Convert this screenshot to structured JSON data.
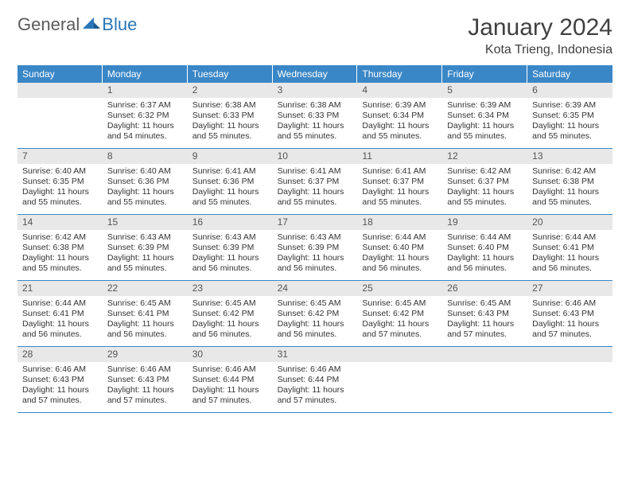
{
  "logo": {
    "text1": "General",
    "text2": "Blue"
  },
  "title": "January 2024",
  "location": "Kota Trieng, Indonesia",
  "header_bg": "#3a87c7",
  "daynum_bg": "#e8e8e8",
  "border_color": "#3a87c7",
  "day_names": [
    "Sunday",
    "Monday",
    "Tuesday",
    "Wednesday",
    "Thursday",
    "Friday",
    "Saturday"
  ],
  "weeks": [
    [
      {
        "n": "",
        "sr": "",
        "ss": "",
        "dl": ""
      },
      {
        "n": "1",
        "sr": "Sunrise: 6:37 AM",
        "ss": "Sunset: 6:32 PM",
        "dl": "Daylight: 11 hours and 54 minutes."
      },
      {
        "n": "2",
        "sr": "Sunrise: 6:38 AM",
        "ss": "Sunset: 6:33 PM",
        "dl": "Daylight: 11 hours and 55 minutes."
      },
      {
        "n": "3",
        "sr": "Sunrise: 6:38 AM",
        "ss": "Sunset: 6:33 PM",
        "dl": "Daylight: 11 hours and 55 minutes."
      },
      {
        "n": "4",
        "sr": "Sunrise: 6:39 AM",
        "ss": "Sunset: 6:34 PM",
        "dl": "Daylight: 11 hours and 55 minutes."
      },
      {
        "n": "5",
        "sr": "Sunrise: 6:39 AM",
        "ss": "Sunset: 6:34 PM",
        "dl": "Daylight: 11 hours and 55 minutes."
      },
      {
        "n": "6",
        "sr": "Sunrise: 6:39 AM",
        "ss": "Sunset: 6:35 PM",
        "dl": "Daylight: 11 hours and 55 minutes."
      }
    ],
    [
      {
        "n": "7",
        "sr": "Sunrise: 6:40 AM",
        "ss": "Sunset: 6:35 PM",
        "dl": "Daylight: 11 hours and 55 minutes."
      },
      {
        "n": "8",
        "sr": "Sunrise: 6:40 AM",
        "ss": "Sunset: 6:36 PM",
        "dl": "Daylight: 11 hours and 55 minutes."
      },
      {
        "n": "9",
        "sr": "Sunrise: 6:41 AM",
        "ss": "Sunset: 6:36 PM",
        "dl": "Daylight: 11 hours and 55 minutes."
      },
      {
        "n": "10",
        "sr": "Sunrise: 6:41 AM",
        "ss": "Sunset: 6:37 PM",
        "dl": "Daylight: 11 hours and 55 minutes."
      },
      {
        "n": "11",
        "sr": "Sunrise: 6:41 AM",
        "ss": "Sunset: 6:37 PM",
        "dl": "Daylight: 11 hours and 55 minutes."
      },
      {
        "n": "12",
        "sr": "Sunrise: 6:42 AM",
        "ss": "Sunset: 6:37 PM",
        "dl": "Daylight: 11 hours and 55 minutes."
      },
      {
        "n": "13",
        "sr": "Sunrise: 6:42 AM",
        "ss": "Sunset: 6:38 PM",
        "dl": "Daylight: 11 hours and 55 minutes."
      }
    ],
    [
      {
        "n": "14",
        "sr": "Sunrise: 6:42 AM",
        "ss": "Sunset: 6:38 PM",
        "dl": "Daylight: 11 hours and 55 minutes."
      },
      {
        "n": "15",
        "sr": "Sunrise: 6:43 AM",
        "ss": "Sunset: 6:39 PM",
        "dl": "Daylight: 11 hours and 55 minutes."
      },
      {
        "n": "16",
        "sr": "Sunrise: 6:43 AM",
        "ss": "Sunset: 6:39 PM",
        "dl": "Daylight: 11 hours and 56 minutes."
      },
      {
        "n": "17",
        "sr": "Sunrise: 6:43 AM",
        "ss": "Sunset: 6:39 PM",
        "dl": "Daylight: 11 hours and 56 minutes."
      },
      {
        "n": "18",
        "sr": "Sunrise: 6:44 AM",
        "ss": "Sunset: 6:40 PM",
        "dl": "Daylight: 11 hours and 56 minutes."
      },
      {
        "n": "19",
        "sr": "Sunrise: 6:44 AM",
        "ss": "Sunset: 6:40 PM",
        "dl": "Daylight: 11 hours and 56 minutes."
      },
      {
        "n": "20",
        "sr": "Sunrise: 6:44 AM",
        "ss": "Sunset: 6:41 PM",
        "dl": "Daylight: 11 hours and 56 minutes."
      }
    ],
    [
      {
        "n": "21",
        "sr": "Sunrise: 6:44 AM",
        "ss": "Sunset: 6:41 PM",
        "dl": "Daylight: 11 hours and 56 minutes."
      },
      {
        "n": "22",
        "sr": "Sunrise: 6:45 AM",
        "ss": "Sunset: 6:41 PM",
        "dl": "Daylight: 11 hours and 56 minutes."
      },
      {
        "n": "23",
        "sr": "Sunrise: 6:45 AM",
        "ss": "Sunset: 6:42 PM",
        "dl": "Daylight: 11 hours and 56 minutes."
      },
      {
        "n": "24",
        "sr": "Sunrise: 6:45 AM",
        "ss": "Sunset: 6:42 PM",
        "dl": "Daylight: 11 hours and 56 minutes."
      },
      {
        "n": "25",
        "sr": "Sunrise: 6:45 AM",
        "ss": "Sunset: 6:42 PM",
        "dl": "Daylight: 11 hours and 57 minutes."
      },
      {
        "n": "26",
        "sr": "Sunrise: 6:45 AM",
        "ss": "Sunset: 6:43 PM",
        "dl": "Daylight: 11 hours and 57 minutes."
      },
      {
        "n": "27",
        "sr": "Sunrise: 6:46 AM",
        "ss": "Sunset: 6:43 PM",
        "dl": "Daylight: 11 hours and 57 minutes."
      }
    ],
    [
      {
        "n": "28",
        "sr": "Sunrise: 6:46 AM",
        "ss": "Sunset: 6:43 PM",
        "dl": "Daylight: 11 hours and 57 minutes."
      },
      {
        "n": "29",
        "sr": "Sunrise: 6:46 AM",
        "ss": "Sunset: 6:43 PM",
        "dl": "Daylight: 11 hours and 57 minutes."
      },
      {
        "n": "30",
        "sr": "Sunrise: 6:46 AM",
        "ss": "Sunset: 6:44 PM",
        "dl": "Daylight: 11 hours and 57 minutes."
      },
      {
        "n": "31",
        "sr": "Sunrise: 6:46 AM",
        "ss": "Sunset: 6:44 PM",
        "dl": "Daylight: 11 hours and 57 minutes."
      },
      {
        "n": "",
        "sr": "",
        "ss": "",
        "dl": ""
      },
      {
        "n": "",
        "sr": "",
        "ss": "",
        "dl": ""
      },
      {
        "n": "",
        "sr": "",
        "ss": "",
        "dl": ""
      }
    ]
  ]
}
